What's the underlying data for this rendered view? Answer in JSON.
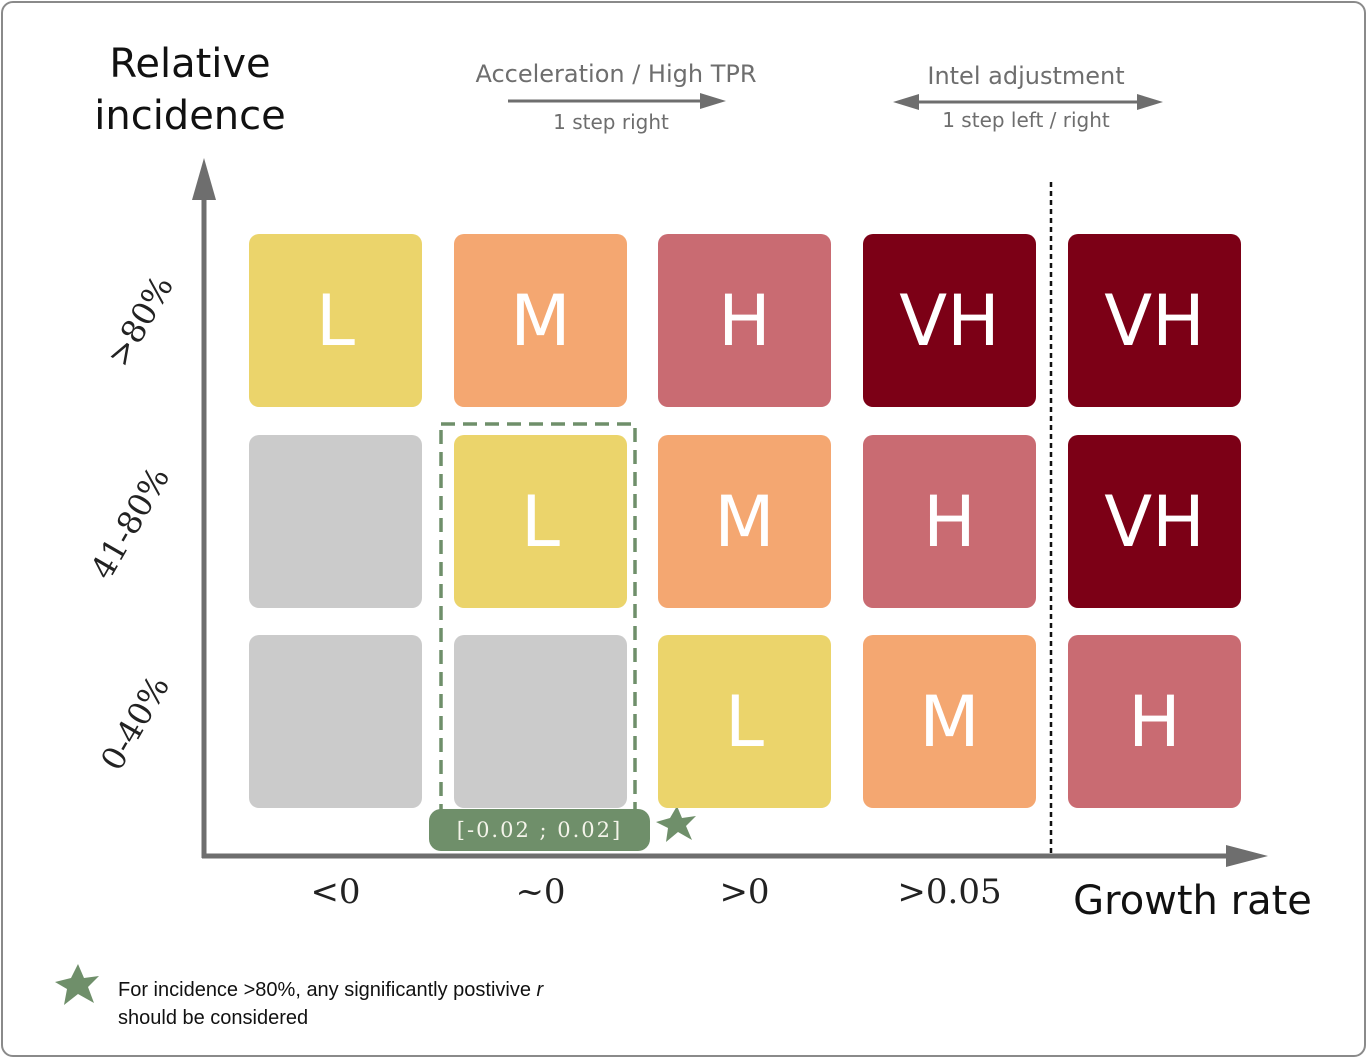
{
  "y_axis_title": [
    "Relative",
    "incidence"
  ],
  "x_axis_title": "Growth rate",
  "annotations": {
    "acceleration": {
      "label": "Acceleration / High TPR",
      "sublabel": "1 step right"
    },
    "intel": {
      "label": "Intel adjustment",
      "sublabel": "1 step left / right"
    }
  },
  "columns": [
    "<0",
    "~0",
    ">0",
    ">0.05"
  ],
  "rows": [
    ">80%",
    "41-80%",
    "0-40%"
  ],
  "grid": [
    [
      "L",
      "M",
      "H",
      "VH",
      "VH"
    ],
    [
      "",
      "L",
      "M",
      "H",
      "VH"
    ],
    [
      "",
      "",
      "L",
      "M",
      "H"
    ]
  ],
  "level_colors": {
    "L": "#ebd46b",
    "M": "#f4a771",
    "H": "#c96b72",
    "VH": "#7c0016",
    "": "#cbcbcb"
  },
  "range_badge": "[-0.02 ; 0.02]",
  "footnote": {
    "line1_prefix": "For incidence >80%, any significantly postivive ",
    "line1_var": "r",
    "line2": "should be considered"
  },
  "colors": {
    "axis": "#6e6e6e",
    "dashed_box": "#6f8f6a",
    "star": "#6f8f6a"
  }
}
